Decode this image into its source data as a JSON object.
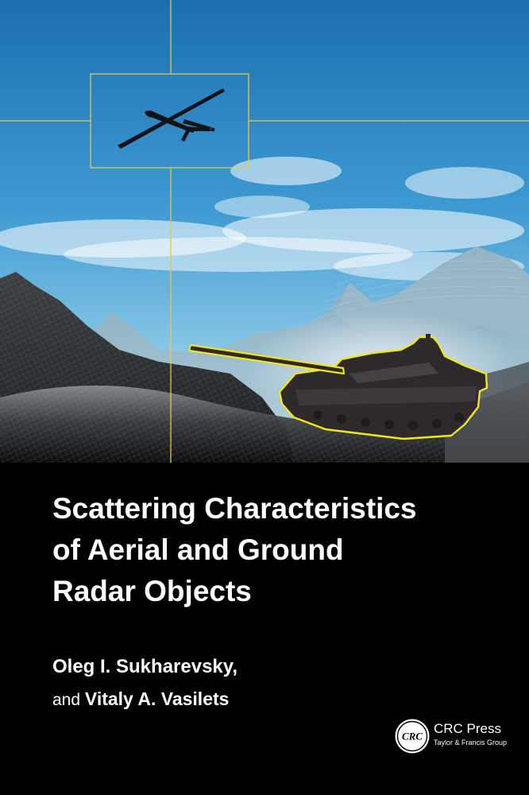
{
  "cover": {
    "title_lines": [
      "Scattering Characteristics",
      "of Aerial and Ground",
      "Radar Objects"
    ],
    "author_1": "Oleg I. Sukharevsky,",
    "author_conjunction": "and",
    "author_2": "Vitaly A. Vasilets",
    "publisher": {
      "logo_text": "CRC",
      "name": "CRC Press",
      "group": "Taylor & Francis Group"
    }
  },
  "artwork": {
    "icons": [
      "drone-icon",
      "tank-icon",
      "mountains-image",
      "targeting-crosshair"
    ],
    "colors": {
      "sky_top": "#1c73b4",
      "sky_bottom": "#9fd0ea",
      "highlight": "#f2e51c",
      "crosshair": "#e0c640",
      "background": "#000000"
    }
  }
}
